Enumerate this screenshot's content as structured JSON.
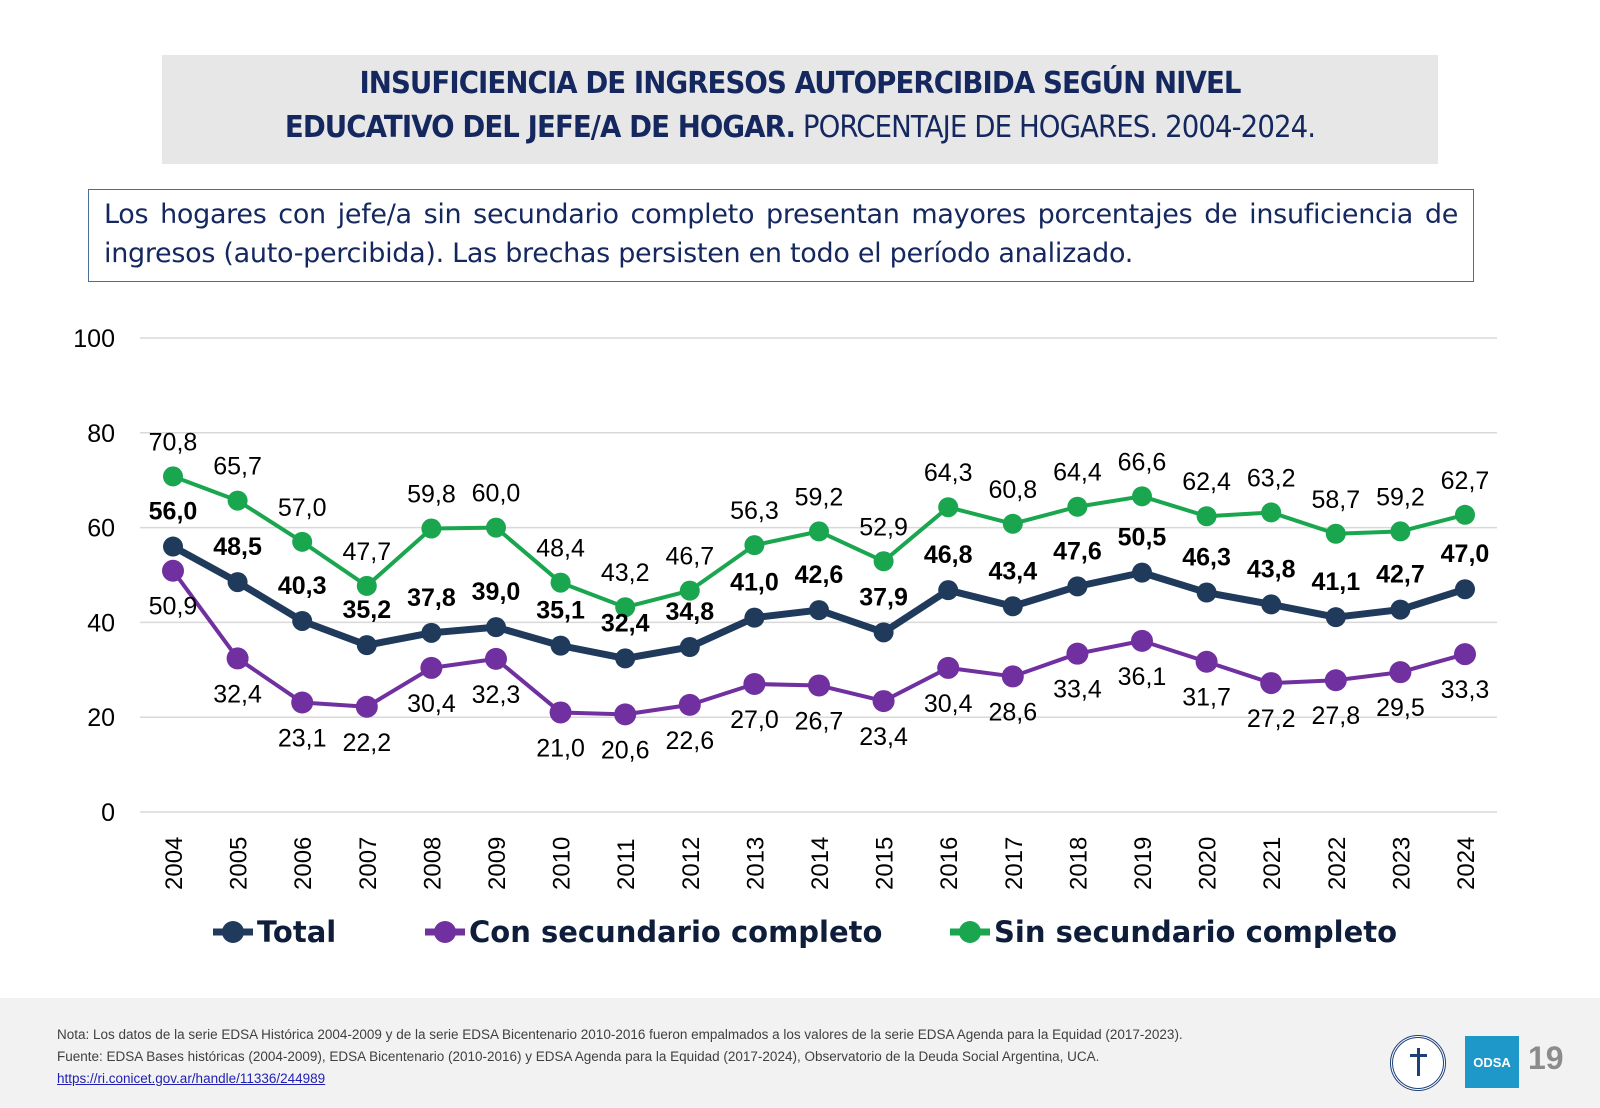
{
  "header": {
    "title_bold_line1": "INSUFICIENCIA DE INGRESOS AUTOPERCIBIDA SEGÚN NIVEL",
    "title_bold_line2": "EDUCATIVO DEL JEFE/A DE HOGAR.",
    "title_sub": " PORCENTAJE DE HOGARES. 2004-2024."
  },
  "summary": {
    "text": "Los hogares con jefe/a sin secundario completo presentan mayores porcentajes de insuficiencia de ingresos (auto-percibida). Las brechas persisten en todo el período analizado."
  },
  "chart_data": {
    "type": "line",
    "title": "Insuficiencia de ingresos autopercibida según nivel educativo del jefe/a de hogar. Porcentaje de hogares. 2004-2024.",
    "xlabel": "",
    "ylabel": "",
    "ylim": [
      0,
      100
    ],
    "yticks": [
      "0",
      "20",
      "40",
      "60",
      "80",
      "100"
    ],
    "grid": true,
    "legend_position": "bottom",
    "categories": [
      "2004",
      "2005",
      "2006",
      "2007",
      "2008",
      "2009",
      "2010",
      "2011",
      "2012",
      "2013",
      "2014",
      "2015",
      "2016",
      "2017",
      "2018",
      "2019",
      "2020",
      "2021",
      "2022",
      "2023",
      "2024"
    ],
    "series": [
      {
        "name": "Total",
        "color": "#203a5c",
        "values": [
          56.0,
          48.5,
          40.3,
          35.2,
          37.8,
          39.0,
          35.1,
          32.4,
          34.8,
          41.0,
          42.6,
          37.9,
          46.8,
          43.4,
          47.6,
          50.5,
          46.3,
          43.8,
          41.1,
          42.7,
          47.0
        ],
        "labels": [
          "56,0",
          "48,5",
          "40,3",
          "35,2",
          "37,8",
          "39,0",
          "35,1",
          "32,4",
          "34,8",
          "41,0",
          "42,6",
          "37,9",
          "46,8",
          "43,4",
          "47,6",
          "50,5",
          "46,3",
          "43,8",
          "41,1",
          "42,7",
          "47,0"
        ]
      },
      {
        "name": "Con secundario completo",
        "color": "#7030a0",
        "values": [
          50.9,
          32.4,
          23.1,
          22.2,
          30.4,
          32.3,
          21.0,
          20.6,
          22.6,
          27.0,
          26.7,
          23.4,
          30.4,
          28.6,
          33.4,
          36.1,
          31.7,
          27.2,
          27.8,
          29.5,
          33.3
        ],
        "labels": [
          "50,9",
          "32,4",
          "23,1",
          "22,2",
          "30,4",
          "32,3",
          "21,0",
          "20,6",
          "22,6",
          "27,0",
          "26,7",
          "23,4",
          "30,4",
          "28,6",
          "33,4",
          "36,1",
          "31,7",
          "27,2",
          "27,8",
          "29,5",
          "33,3"
        ]
      },
      {
        "name": "Sin secundario completo",
        "color": "#1aa64f",
        "values": [
          70.8,
          65.7,
          57.0,
          47.7,
          59.8,
          60.0,
          48.4,
          43.2,
          46.7,
          56.3,
          59.2,
          52.9,
          64.3,
          60.8,
          64.4,
          66.6,
          62.4,
          63.2,
          58.7,
          59.2,
          62.7
        ],
        "labels": [
          "70,8",
          "65,7",
          "57,0",
          "47,7",
          "59,8",
          "60,0",
          "48,4",
          "43,2",
          "46,7",
          "56,3",
          "59,2",
          "52,9",
          "64,3",
          "60,8",
          "64,4",
          "66,6",
          "62,4",
          "63,2",
          "58,7",
          "59,2",
          "62,7"
        ]
      }
    ]
  },
  "footer": {
    "note": "Nota: Los datos de la serie EDSA Histórica 2004-2009 y de la serie EDSA Bicentenario 2010-2016 fueron empalmados a los valores de la serie EDSA Agenda para la Equidad (2017-2023).",
    "source": "Fuente: EDSA Bases históricas (2004-2009), EDSA Bicentenario (2010-2016) y EDSA Agenda para la Equidad (2017-2024), Observatorio de la Deuda Social Argentina, UCA.",
    "link": "https://ri.conicet.gov.ar/handle/11336/244989",
    "logo_label": "ODSA",
    "page_number": "19"
  }
}
